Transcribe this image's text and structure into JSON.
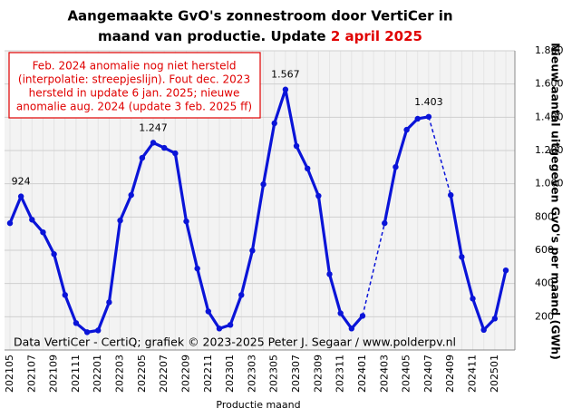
{
  "chart_data": {
    "type": "line",
    "title_line1": "Aangemaakte GvO's zonnestroom door VertiCer in",
    "title_line2": "maand van productie. Update",
    "title_highlight": "2 april 2025",
    "annotation": [
      "Feb. 2024 anomalie nog niet hersteld",
      "(interpolatie: streepjeslijn). Fout dec. 2023",
      "hersteld in update 6 jan. 2025; nieuwe",
      "anomalie aug. 2024 (update 3 feb. 2025 ff)"
    ],
    "source": "Data VertiCer - CertiQ; grafiek © 2023-2025 Peter J. Segaar / www.polderpv.nl",
    "x_label": "Productie maand",
    "y_label": "Nieuw aantal uitgegeven GvO's per maand (GWh)",
    "categories": [
      "202105",
      null,
      "202107",
      null,
      "202109",
      null,
      "202111",
      null,
      "202201",
      null,
      "202203",
      null,
      "202205",
      null,
      "202207",
      null,
      "202209",
      null,
      "202211",
      null,
      "202301",
      null,
      "202303",
      null,
      "202305",
      null,
      "202307",
      null,
      "202309",
      null,
      "202311",
      null,
      "202401",
      null,
      "202403",
      null,
      "202405",
      null,
      "202407",
      null,
      "202409",
      null,
      "202411",
      null,
      "202501",
      null
    ],
    "values": [
      763,
      924,
      784,
      708,
      577,
      331,
      162,
      107,
      118,
      287,
      779,
      932,
      1156,
      1247,
      1216,
      1183,
      774,
      490,
      232,
      129,
      151,
      331,
      598,
      997,
      1364,
      1567,
      1227,
      1092,
      927,
      456,
      221,
      129,
      205,
      null,
      763,
      1101,
      1325,
      1391,
      1403,
      null,
      932,
      560,
      309,
      121,
      189,
      479
    ],
    "value_labels": [
      null,
      "924",
      null,
      null,
      null,
      null,
      null,
      null,
      null,
      null,
      null,
      null,
      null,
      "1.247",
      null,
      null,
      null,
      null,
      null,
      null,
      null,
      null,
      null,
      null,
      null,
      "1.567",
      null,
      null,
      null,
      null,
      null,
      null,
      null,
      null,
      null,
      null,
      null,
      null,
      "1.403",
      null,
      null,
      null,
      null,
      null,
      null,
      null
    ],
    "color": "#0a14d8",
    "ylim": [
      0,
      1800
    ],
    "yticks": [
      {
        "value": 200,
        "label": "200"
      },
      {
        "value": 400,
        "label": "400"
      },
      {
        "value": 600,
        "label": "600"
      },
      {
        "value": 800,
        "label": "800"
      },
      {
        "value": 1000,
        "label": "1.000"
      },
      {
        "value": 1200,
        "label": "1.200"
      },
      {
        "value": 1400,
        "label": "1.400"
      },
      {
        "value": 1600,
        "label": "1.600"
      },
      {
        "value": 1800,
        "label": "1.800"
      }
    ],
    "grid": true
  }
}
